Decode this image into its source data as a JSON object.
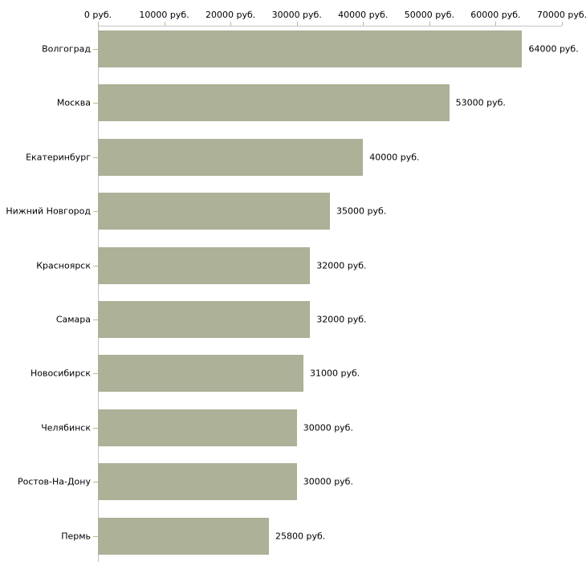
{
  "chart_data": {
    "type": "bar",
    "orientation": "horizontal",
    "title": "",
    "xlabel": "",
    "ylabel": "",
    "xlim": [
      0,
      70000
    ],
    "grid": false,
    "legend": null,
    "x_ticks": [
      0,
      10000,
      20000,
      30000,
      40000,
      50000,
      60000,
      70000
    ],
    "x_tick_labels": [
      "0 руб.",
      "10000 руб.",
      "20000 руб.",
      "30000 руб.",
      "40000 руб.",
      "50000 руб.",
      "60000 руб.",
      "70000 руб."
    ],
    "categories": [
      "Волгоград",
      "Москва",
      "Екатеринбург",
      "Нижний Новгород",
      "Красноярск",
      "Самара",
      "Новосибирск",
      "Челябинск",
      "Ростов-На-Дону",
      "Пермь"
    ],
    "values": [
      64000,
      53000,
      40000,
      35000,
      32000,
      32000,
      31000,
      30000,
      30000,
      25800
    ],
    "value_labels": [
      "64000 руб.",
      "53000 руб.",
      "40000 руб.",
      "35000 руб.",
      "32000 руб.",
      "32000 руб.",
      "31000 руб.",
      "30000 руб.",
      "30000 руб.",
      "25800 руб."
    ],
    "colors": {
      "bar": "#acb197",
      "axis_line": "#c3c3c3",
      "tick": "#c1bb82",
      "text": "#000000",
      "background": "#ffffff"
    }
  }
}
